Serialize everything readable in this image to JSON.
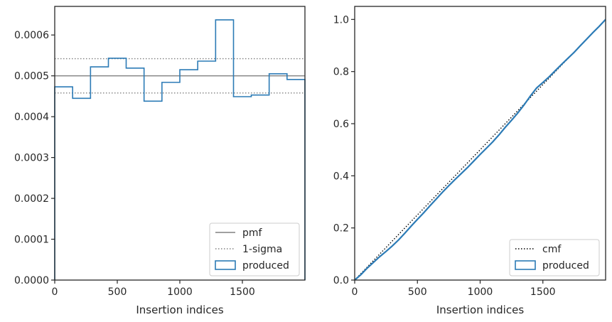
{
  "chart_data": [
    {
      "type": "line",
      "xlabel": "Insertion indices",
      "ylabel": "",
      "xlim": [
        0,
        2000
      ],
      "ylim": [
        0,
        0.00067
      ],
      "xticks": [
        0,
        500,
        1000,
        1500
      ],
      "xtick_labels": [
        "0",
        "500",
        "1000",
        "1500"
      ],
      "yticks": [
        0,
        0.0001,
        0.0002,
        0.0003,
        0.0004,
        0.0005,
        0.0006
      ],
      "ytick_labels": [
        "0.0000",
        "0.0001",
        "0.0002",
        "0.0003",
        "0.0004",
        "0.0005",
        "0.0006"
      ],
      "legend_position": "lower-right",
      "series": [
        {
          "name": "pmf",
          "style": "solid",
          "color": "#808080",
          "y": 0.0005
        },
        {
          "name": "1-sigma",
          "style": "dotted",
          "color": "#808080",
          "y": [
            0.000542,
            0.000458
          ]
        },
        {
          "name": "produced",
          "style": "step-histogram",
          "color": "#2c7bb6",
          "bin_edges": [
            0,
            143,
            286,
            429,
            571,
            714,
            857,
            1000,
            1143,
            1286,
            1429,
            1571,
            1714,
            1857,
            2000
          ],
          "values": [
            0.000473,
            0.000445,
            0.000522,
            0.000543,
            0.000519,
            0.000438,
            0.000484,
            0.000515,
            0.000536,
            0.000637,
            0.000449,
            0.000453,
            0.000505,
            0.000491
          ]
        }
      ]
    },
    {
      "type": "line",
      "xlabel": "Insertion indices",
      "ylabel": "",
      "xlim": [
        0,
        2000
      ],
      "ylim": [
        0,
        1.05
      ],
      "xticks": [
        0,
        500,
        1000,
        1500
      ],
      "xtick_labels": [
        "0",
        "500",
        "1000",
        "1500"
      ],
      "yticks": [
        0,
        0.2,
        0.4,
        0.6,
        0.8,
        1.0
      ],
      "ytick_labels": [
        "0.0",
        "0.2",
        "0.4",
        "0.6",
        "0.8",
        "1.0"
      ],
      "legend_position": "lower-right",
      "series": [
        {
          "name": "cmf",
          "style": "dotted",
          "color": "#000000",
          "x": [
            0,
            2000
          ],
          "y": [
            0,
            1.0
          ]
        },
        {
          "name": "produced",
          "style": "line",
          "color": "#2c7bb6",
          "x": [
            0,
            50,
            100,
            150,
            200,
            250,
            300,
            350,
            400,
            450,
            500,
            550,
            600,
            650,
            700,
            750,
            800,
            850,
            900,
            950,
            1000,
            1050,
            1100,
            1150,
            1200,
            1250,
            1300,
            1350,
            1400,
            1450,
            1500,
            1550,
            1600,
            1650,
            1700,
            1750,
            1800,
            1850,
            1900,
            1950,
            2000
          ],
          "y": [
            0,
            0.021,
            0.046,
            0.068,
            0.09,
            0.11,
            0.131,
            0.154,
            0.18,
            0.207,
            0.233,
            0.258,
            0.285,
            0.311,
            0.337,
            0.362,
            0.386,
            0.409,
            0.432,
            0.457,
            0.482,
            0.506,
            0.53,
            0.557,
            0.586,
            0.613,
            0.641,
            0.672,
            0.706,
            0.737,
            0.758,
            0.78,
            0.804,
            0.828,
            0.851,
            0.874,
            0.9,
            0.925,
            0.95,
            0.974,
            1.0
          ]
        }
      ]
    }
  ]
}
